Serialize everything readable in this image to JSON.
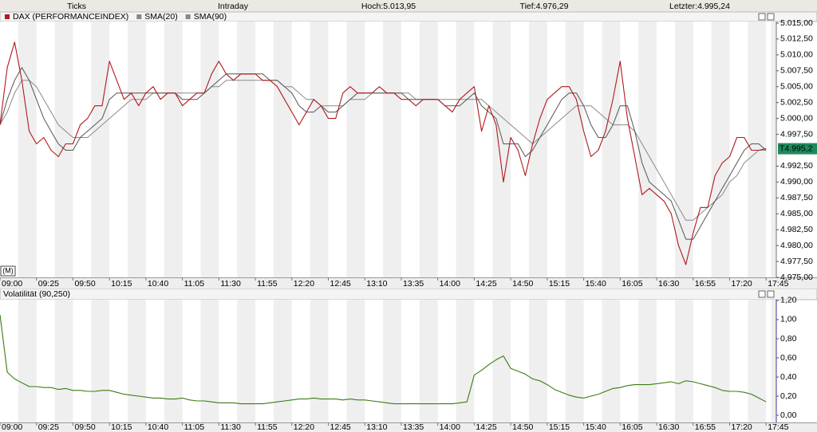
{
  "toolbar": {
    "ticks": "Ticks",
    "intraday": "Intraday",
    "high": "Hoch:5.013,95",
    "low": "Tief:4.976,29",
    "last": "Letzter:4.995,24"
  },
  "chart_data": [
    {
      "type": "line",
      "mode_label": "(M)",
      "x": [
        "09:00",
        "09:05",
        "09:10",
        "09:15",
        "09:20",
        "09:25",
        "09:30",
        "09:35",
        "09:40",
        "09:45",
        "09:50",
        "09:55",
        "10:00",
        "10:05",
        "10:10",
        "10:15",
        "10:20",
        "10:25",
        "10:30",
        "10:35",
        "10:40",
        "10:45",
        "10:50",
        "10:55",
        "11:00",
        "11:05",
        "11:10",
        "11:15",
        "11:20",
        "11:25",
        "11:30",
        "11:35",
        "11:40",
        "11:45",
        "11:50",
        "11:55",
        "12:00",
        "12:05",
        "12:10",
        "12:15",
        "12:20",
        "12:25",
        "12:30",
        "12:35",
        "12:40",
        "12:45",
        "12:50",
        "12:55",
        "13:00",
        "13:05",
        "13:10",
        "13:15",
        "13:20",
        "13:25",
        "13:30",
        "13:35",
        "13:40",
        "13:45",
        "13:50",
        "13:55",
        "14:00",
        "14:05",
        "14:10",
        "14:15",
        "14:20",
        "14:25",
        "14:30",
        "14:35",
        "14:40",
        "14:45",
        "14:50",
        "14:55",
        "15:00",
        "15:05",
        "15:10",
        "15:15",
        "15:20",
        "15:25",
        "15:30",
        "15:35",
        "15:40",
        "15:45",
        "15:50",
        "15:55",
        "16:00",
        "16:05",
        "16:10",
        "16:15",
        "16:20",
        "16:25",
        "16:30",
        "16:35",
        "16:40",
        "16:45",
        "16:50",
        "16:55",
        "17:00",
        "17:05",
        "17:10",
        "17:15",
        "17:20",
        "17:25",
        "17:30",
        "17:35",
        "17:40",
        "17:45"
      ],
      "series": [
        {
          "name": "DAX (PERFORMANCEINDEX)",
          "color": "#b0191e",
          "values": [
            4999,
            5008,
            5012,
            5006,
            4998,
            4996,
            4997,
            4995,
            4994,
            4996,
            4996,
            4999,
            5000,
            5002,
            5002,
            5009,
            5006,
            5003,
            5004,
            5002,
            5004,
            5005,
            5003,
            5004,
            5004,
            5002,
            5003,
            5004,
            5004,
            5007,
            5009,
            5007,
            5006,
            5007,
            5007,
            5007,
            5006,
            5006,
            5005,
            5003,
            5001,
            4999,
            5001,
            5003,
            5002,
            5000,
            5000,
            5004,
            5005,
            5004,
            5004,
            5004,
            5005,
            5004,
            5004,
            5003,
            5003,
            5002,
            5003,
            5003,
            5003,
            5002,
            5001,
            5003,
            5004,
            5005,
            4998,
            5002,
            4999,
            4990,
            4997,
            4995,
            4991,
            4996,
            5000,
            5003,
            5004,
            5005,
            5005,
            5003,
            4998,
            4994,
            4995,
            4998,
            5003,
            5009,
            5000,
            4994,
            4988,
            4989,
            4988,
            4987,
            4985,
            4980,
            4977,
            4982,
            4986,
            4986,
            4991,
            4993,
            4994,
            4997,
            4997,
            4995,
            4995,
            4995.24
          ]
        },
        {
          "name": "SMA(20)",
          "color": "#555555",
          "values": [
            4999,
            5003,
            5006,
            5008,
            5006,
            5003,
            5000,
            4998,
            4996,
            4995,
            4995,
            4997,
            4998,
            4999,
            5000,
            5003,
            5004,
            5004,
            5004,
            5004,
            5004,
            5004,
            5004,
            5004,
            5004,
            5003,
            5003,
            5003,
            5004,
            5005,
            5006,
            5007,
            5007,
            5007,
            5007,
            5007,
            5007,
            5006,
            5006,
            5005,
            5004,
            5002,
            5001,
            5001,
            5002,
            5001,
            5001,
            5002,
            5003,
            5004,
            5004,
            5004,
            5004,
            5004,
            5004,
            5004,
            5003,
            5003,
            5003,
            5003,
            5003,
            5002,
            5002,
            5002,
            5003,
            5004,
            5002,
            5001,
            5000,
            4996,
            4996,
            4996,
            4994,
            4995,
            4997,
            4999,
            5001,
            5003,
            5004,
            5004,
            5002,
            4999,
            4997,
            4997,
            4999,
            5002,
            5002,
            4998,
            4993,
            4990,
            4989,
            4988,
            4987,
            4984,
            4981,
            4981,
            4983,
            4985,
            4987,
            4989,
            4991,
            4993,
            4995,
            4996,
            4996,
            4995
          ]
        },
        {
          "name": "SMA(90)",
          "color": "#8a8a8a",
          "values": [
            4999,
            5001,
            5004,
            5006,
            5006,
            5005,
            5003,
            5001,
            4999,
            4998,
            4997,
            4997,
            4997,
            4998,
            4999,
            5000,
            5001,
            5002,
            5003,
            5003,
            5003,
            5004,
            5004,
            5004,
            5004,
            5004,
            5004,
            5004,
            5004,
            5005,
            5005,
            5006,
            5006,
            5006,
            5006,
            5006,
            5006,
            5006,
            5006,
            5005,
            5005,
            5004,
            5003,
            5003,
            5002,
            5002,
            5002,
            5002,
            5003,
            5003,
            5003,
            5004,
            5004,
            5004,
            5004,
            5004,
            5004,
            5003,
            5003,
            5003,
            5003,
            5003,
            5003,
            5003,
            5003,
            5003,
            5003,
            5002,
            5001,
            5000,
            4999,
            4998,
            4997,
            4996,
            4997,
            4998,
            4999,
            5000,
            5001,
            5002,
            5002,
            5002,
            5001,
            5000,
            4999,
            4999,
            4999,
            4998,
            4996,
            4994,
            4992,
            4990,
            4988,
            4986,
            4984,
            4984,
            4985,
            4986,
            4987,
            4988,
            4990,
            4991,
            4993,
            4994,
            4995,
            4995
          ]
        }
      ],
      "last_value": {
        "value": 4995.24,
        "label": "T4.995,2"
      },
      "xlim": [
        "09:00",
        "17:52"
      ],
      "xticks": [
        "09:00",
        "09:25",
        "09:50",
        "10:15",
        "10:40",
        "11:05",
        "11:30",
        "11:55",
        "12:20",
        "12:45",
        "13:10",
        "13:35",
        "14:00",
        "14:25",
        "14:50",
        "15:15",
        "15:40",
        "16:05",
        "16:30",
        "16:55",
        "17:20",
        "17:45"
      ],
      "ylim": [
        4975,
        5015.25
      ],
      "yticks": [
        {
          "value": 4975,
          "label": "4.975,00"
        },
        {
          "value": 4977.5,
          "label": "4.977,50"
        },
        {
          "value": 4980,
          "label": "4.980,00"
        },
        {
          "value": 4982.5,
          "label": "4.982,50"
        },
        {
          "value": 4985,
          "label": "4.985,00"
        },
        {
          "value": 4987.5,
          "label": "4.987,50"
        },
        {
          "value": 4990,
          "label": "4.990,00"
        },
        {
          "value": 4992.5,
          "label": "4.992,50"
        },
        {
          "value": 4997.5,
          "label": "4.997,50"
        },
        {
          "value": 5000,
          "label": "5.000,00"
        },
        {
          "value": 5002.5,
          "label": "5.002,50"
        },
        {
          "value": 5005,
          "label": "5.005,00"
        },
        {
          "value": 5007.5,
          "label": "5.007,50"
        },
        {
          "value": 5010,
          "label": "5.010,00"
        },
        {
          "value": 5012.5,
          "label": "5.012,50"
        },
        {
          "value": 5015,
          "label": "5.015,00"
        }
      ],
      "grid": false
    },
    {
      "type": "line",
      "title": "Volatilität (90,250)",
      "color": "#3a7d12",
      "x": [
        "09:00",
        "09:05",
        "09:10",
        "09:15",
        "09:20",
        "09:25",
        "09:30",
        "09:35",
        "09:40",
        "09:45",
        "09:50",
        "09:55",
        "10:00",
        "10:05",
        "10:10",
        "10:15",
        "10:20",
        "10:25",
        "10:30",
        "10:35",
        "10:40",
        "10:45",
        "10:50",
        "10:55",
        "11:00",
        "11:05",
        "11:10",
        "11:15",
        "11:20",
        "11:25",
        "11:30",
        "11:35",
        "11:40",
        "11:45",
        "11:50",
        "11:55",
        "12:00",
        "12:05",
        "12:10",
        "12:15",
        "12:20",
        "12:25",
        "12:30",
        "12:35",
        "12:40",
        "12:45",
        "12:50",
        "12:55",
        "13:00",
        "13:05",
        "13:10",
        "13:15",
        "13:20",
        "13:25",
        "13:30",
        "13:35",
        "13:40",
        "13:45",
        "13:50",
        "13:55",
        "14:00",
        "14:05",
        "14:10",
        "14:15",
        "14:20",
        "14:25",
        "14:30",
        "14:35",
        "14:40",
        "14:45",
        "14:50",
        "14:55",
        "15:00",
        "15:05",
        "15:10",
        "15:15",
        "15:20",
        "15:25",
        "15:30",
        "15:35",
        "15:40",
        "15:45",
        "15:50",
        "15:55",
        "16:00",
        "16:05",
        "16:10",
        "16:15",
        "16:20",
        "16:25",
        "16:30",
        "16:35",
        "16:40",
        "16:45",
        "16:50",
        "16:55",
        "17:00",
        "17:05",
        "17:10",
        "17:15",
        "17:20",
        "17:25",
        "17:30",
        "17:35",
        "17:40",
        "17:45"
      ],
      "values": [
        1.05,
        0.45,
        0.38,
        0.34,
        0.3,
        0.3,
        0.29,
        0.29,
        0.27,
        0.28,
        0.26,
        0.26,
        0.25,
        0.25,
        0.26,
        0.26,
        0.24,
        0.22,
        0.21,
        0.2,
        0.19,
        0.18,
        0.18,
        0.17,
        0.17,
        0.18,
        0.16,
        0.15,
        0.15,
        0.14,
        0.13,
        0.13,
        0.13,
        0.12,
        0.12,
        0.12,
        0.12,
        0.13,
        0.14,
        0.15,
        0.16,
        0.17,
        0.17,
        0.18,
        0.17,
        0.17,
        0.17,
        0.16,
        0.17,
        0.16,
        0.16,
        0.15,
        0.14,
        0.13,
        0.12,
        0.12,
        0.12,
        0.12,
        0.12,
        0.12,
        0.12,
        0.12,
        0.12,
        0.13,
        0.14,
        0.42,
        0.47,
        0.53,
        0.58,
        0.62,
        0.49,
        0.46,
        0.43,
        0.38,
        0.36,
        0.32,
        0.27,
        0.24,
        0.21,
        0.19,
        0.18,
        0.2,
        0.22,
        0.25,
        0.28,
        0.29,
        0.31,
        0.32,
        0.32,
        0.32,
        0.33,
        0.34,
        0.35,
        0.33,
        0.36,
        0.35,
        0.33,
        0.31,
        0.29,
        0.26,
        0.25,
        0.25,
        0.24,
        0.22,
        0.18,
        0.14
      ],
      "xlim": [
        "09:00",
        "17:52"
      ],
      "xticks": [
        "09:00",
        "09:25",
        "09:50",
        "10:15",
        "10:40",
        "11:05",
        "11:30",
        "11:55",
        "12:20",
        "12:45",
        "13:10",
        "13:35",
        "14:00",
        "14:25",
        "14:50",
        "15:15",
        "15:40",
        "16:05",
        "16:30",
        "16:55",
        "17:20",
        "17:45"
      ],
      "ylim": [
        -0.075,
        1.208
      ],
      "yticks": [
        {
          "value": 0,
          "label": "0,00"
        },
        {
          "value": 0.2,
          "label": "0,20"
        },
        {
          "value": 0.4,
          "label": "0,40"
        },
        {
          "value": 0.6,
          "label": "0,60"
        },
        {
          "value": 0.8,
          "label": "0,80"
        },
        {
          "value": 1,
          "label": "1,00"
        },
        {
          "value": 1.2,
          "label": "1,20"
        }
      ],
      "grid": false
    }
  ]
}
